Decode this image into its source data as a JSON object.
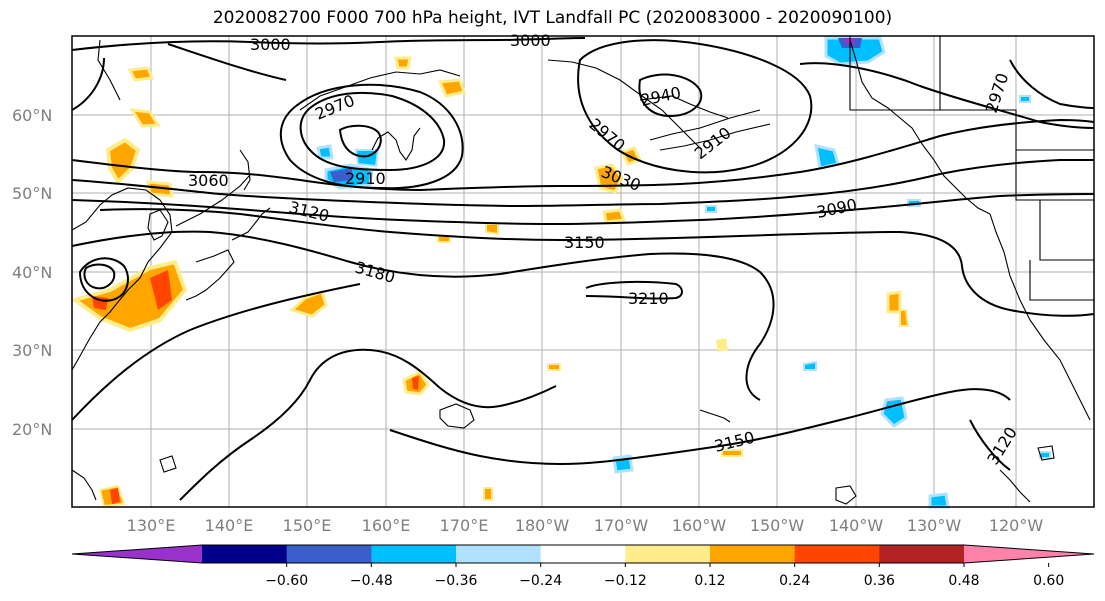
{
  "title": "2020082700 F000 700 hPa height, IVT Landfall PC (2020083000 - 2020090100)",
  "lat_labels": [
    "60°N",
    "50°N",
    "40°N",
    "30°N",
    "20°N"
  ],
  "lon_labels": [
    "130°E",
    "140°E",
    "150°E",
    "160°E",
    "170°E",
    "180°W",
    "170°W",
    "160°W",
    "150°W",
    "140°W",
    "130°W",
    "120°W"
  ],
  "contour_labels": [
    "3000",
    "3000",
    "2970",
    "2940",
    "2970",
    "2910",
    "2910",
    "2970",
    "3060",
    "3030",
    "3090",
    "3120",
    "3150",
    "3180",
    "3210",
    "3150",
    "3120"
  ],
  "colorbar": {
    "colors": [
      "#9932cc",
      "#00008b",
      "#3a5fcd",
      "#00bfff",
      "#b0e2ff",
      "#ffffff",
      "#ffec8b",
      "#ffa500",
      "#ff4500",
      "#b22222",
      "#ff82ab"
    ],
    "ticks": [
      "−0.60",
      "−0.48",
      "−0.36",
      "−0.24",
      "−0.12",
      "0.12",
      "0.24",
      "0.36",
      "0.48",
      "0.60"
    ]
  }
}
